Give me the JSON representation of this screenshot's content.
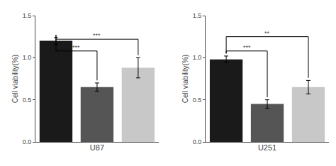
{
  "chart_data": [
    {
      "type": "bar",
      "xlabel": "U87",
      "ylabel": "Cell viability(%)",
      "categories": [
        null,
        null,
        null
      ],
      "values": [
        1.2,
        0.65,
        0.88
      ],
      "errors": [
        0.04,
        0.05,
        0.12
      ],
      "colors": [
        "#1a1a1a",
        "#555555",
        "#c8c8c8"
      ],
      "ylim": [
        0,
        1.5
      ],
      "yticks": [
        {
          "value": 0,
          "label": "0.0"
        },
        0.5,
        {
          "value": 1,
          "label": "1.0"
        },
        1.5
      ],
      "grid": false,
      "tick_labels": "y",
      "annotations": [
        {
          "pair": [
            0,
            1
          ],
          "y": 1.08,
          "label": "***"
        },
        {
          "pair": [
            0,
            2
          ],
          "y": 1.22,
          "label": "***"
        }
      ]
    },
    {
      "type": "bar",
      "xlabel": "U251",
      "ylabel": "Cell viability(%)",
      "categories": [
        null,
        null,
        null
      ],
      "values": [
        0.98,
        0.45,
        0.65
      ],
      "errors": [
        0.04,
        0.05,
        0.08
      ],
      "colors": [
        "#1a1a1a",
        "#555555",
        "#c8c8c8"
      ],
      "ylim": [
        0,
        1.5
      ],
      "yticks": [
        {
          "value": 0,
          "label": "0.0"
        },
        0.5,
        {
          "value": 1,
          "label": "1.0"
        },
        1.5
      ],
      "grid": false,
      "tick_labels": "y",
      "annotations": [
        {
          "pair": [
            0,
            1
          ],
          "y": 1.08,
          "label": "***"
        },
        {
          "pair": [
            0,
            2
          ],
          "y": 1.25,
          "label": "**"
        }
      ]
    }
  ]
}
